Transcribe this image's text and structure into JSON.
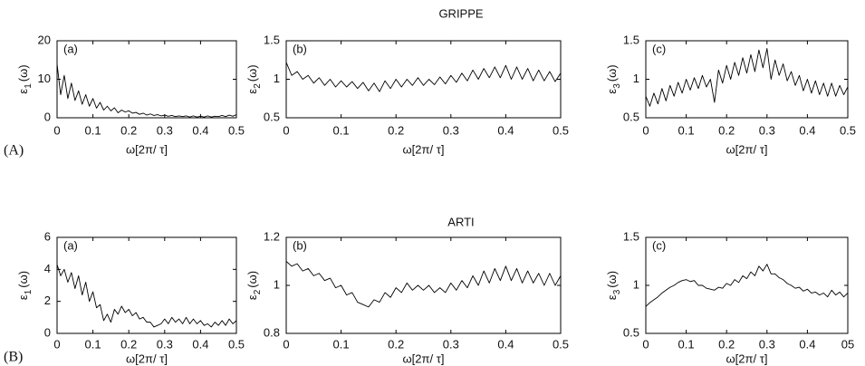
{
  "rows": [
    {
      "title": "GRIPPE",
      "label": "(A)"
    },
    {
      "title": "ARTI",
      "label": "(B)"
    }
  ],
  "chart_data": [
    {
      "type": "line",
      "panel": "(a)",
      "ylabel": [
        "ε",
        "1",
        "(ω)"
      ],
      "xlabel": "ω[2π/ τ]",
      "color": "#000000",
      "x": [
        0,
        0.01,
        0.02,
        0.03,
        0.04,
        0.05,
        0.06,
        0.07,
        0.08,
        0.09,
        0.1,
        0.11,
        0.12,
        0.13,
        0.14,
        0.15,
        0.16,
        0.17,
        0.18,
        0.19,
        0.2,
        0.21,
        0.22,
        0.23,
        0.24,
        0.25,
        0.26,
        0.27,
        0.28,
        0.29,
        0.3,
        0.31,
        0.32,
        0.33,
        0.34,
        0.35,
        0.36,
        0.37,
        0.38,
        0.39,
        0.4,
        0.41,
        0.42,
        0.43,
        0.44,
        0.45,
        0.46,
        0.47,
        0.48,
        0.49,
        0.5
      ],
      "values": [
        14,
        6,
        11,
        5,
        9,
        4.5,
        7,
        3.5,
        6,
        3,
        5,
        2.5,
        4,
        2,
        3,
        1.8,
        2.6,
        1.3,
        2,
        1.5,
        1.8,
        1.2,
        1.4,
        0.9,
        1.2,
        0.7,
        1,
        0.6,
        0.8,
        0.5,
        0.7,
        0.4,
        0.6,
        0.3,
        0.5,
        0.3,
        0.5,
        0.2,
        0.5,
        0.2,
        0.4,
        0.2,
        0.5,
        0.2,
        0.4,
        0.3,
        0.6,
        0.3,
        0.7,
        0.4,
        0.8
      ],
      "xlim": [
        0,
        0.5
      ],
      "xticks": [
        0,
        0.1,
        0.2,
        0.3,
        0.4,
        0.5
      ],
      "ylim": [
        0,
        20
      ],
      "yticks": [
        0,
        10,
        20
      ]
    },
    {
      "type": "line",
      "panel": "(b)",
      "ylabel": [
        "ε",
        "2",
        "(ω)"
      ],
      "xlabel": "ω[2π/ τ]",
      "color": "#000000",
      "x": [
        0,
        0.01,
        0.02,
        0.03,
        0.04,
        0.05,
        0.06,
        0.07,
        0.08,
        0.09,
        0.1,
        0.11,
        0.12,
        0.13,
        0.14,
        0.15,
        0.16,
        0.17,
        0.18,
        0.19,
        0.2,
        0.21,
        0.22,
        0.23,
        0.24,
        0.25,
        0.26,
        0.27,
        0.28,
        0.29,
        0.3,
        0.31,
        0.32,
        0.33,
        0.34,
        0.35,
        0.36,
        0.37,
        0.38,
        0.39,
        0.4,
        0.41,
        0.42,
        0.43,
        0.44,
        0.45,
        0.46,
        0.47,
        0.48,
        0.49,
        0.5
      ],
      "values": [
        1.22,
        1.05,
        1.1,
        1.0,
        1.05,
        0.95,
        1.02,
        0.92,
        1.0,
        0.9,
        0.98,
        0.9,
        0.97,
        0.88,
        0.96,
        0.85,
        0.95,
        0.84,
        0.98,
        0.88,
        1.0,
        0.9,
        1.0,
        0.92,
        1.02,
        0.92,
        1.0,
        0.93,
        1.03,
        0.94,
        1.05,
        0.96,
        1.08,
        0.98,
        1.12,
        1.0,
        1.14,
        1.02,
        1.16,
        1.02,
        1.18,
        1.0,
        1.16,
        1.0,
        1.14,
        0.98,
        1.12,
        0.98,
        1.1,
        0.97,
        1.08
      ],
      "xlim": [
        0,
        0.5
      ],
      "xticks": [
        0,
        0.1,
        0.2,
        0.3,
        0.4,
        0.5
      ],
      "ylim": [
        0.5,
        1.5
      ],
      "yticks": [
        0.5,
        1,
        1.5
      ]
    },
    {
      "type": "line",
      "panel": "(c)",
      "ylabel": [
        "ε",
        "3",
        "(ω)"
      ],
      "xlabel": "ω[2π/ τ]",
      "color": "#000000",
      "x": [
        0,
        0.01,
        0.02,
        0.03,
        0.04,
        0.05,
        0.06,
        0.07,
        0.08,
        0.09,
        0.1,
        0.11,
        0.12,
        0.13,
        0.14,
        0.15,
        0.16,
        0.17,
        0.18,
        0.19,
        0.2,
        0.21,
        0.22,
        0.23,
        0.24,
        0.25,
        0.26,
        0.27,
        0.28,
        0.29,
        0.3,
        0.31,
        0.32,
        0.33,
        0.34,
        0.35,
        0.36,
        0.37,
        0.38,
        0.39,
        0.4,
        0.41,
        0.42,
        0.43,
        0.44,
        0.45,
        0.46,
        0.47,
        0.48,
        0.49,
        0.5
      ],
      "values": [
        0.78,
        0.65,
        0.82,
        0.68,
        0.88,
        0.72,
        0.92,
        0.78,
        0.96,
        0.82,
        1.0,
        0.86,
        1.02,
        0.88,
        1.05,
        0.9,
        1.0,
        0.7,
        1.12,
        0.95,
        1.18,
        1.0,
        1.22,
        1.05,
        1.28,
        1.08,
        1.32,
        1.1,
        1.38,
        1.15,
        1.4,
        1.0,
        1.25,
        1.05,
        1.2,
        0.98,
        1.1,
        0.92,
        1.05,
        0.85,
        1.0,
        0.82,
        0.98,
        0.8,
        0.95,
        0.78,
        0.95,
        0.78,
        0.92,
        0.8,
        0.9
      ],
      "xlim": [
        0,
        0.5
      ],
      "xticks": [
        0,
        0.1,
        0.2,
        0.3,
        0.4,
        0.5
      ],
      "ylim": [
        0.5,
        1.5
      ],
      "yticks": [
        0.5,
        1,
        1.5
      ]
    },
    {
      "type": "line",
      "panel": "(a)",
      "ylabel": [
        "ε",
        "1",
        "(ω)"
      ],
      "xlabel": "ω[2π/ τ]",
      "color": "#000000",
      "x": [
        0,
        0.01,
        0.02,
        0.03,
        0.04,
        0.05,
        0.06,
        0.07,
        0.08,
        0.09,
        0.1,
        0.11,
        0.12,
        0.13,
        0.14,
        0.15,
        0.16,
        0.17,
        0.18,
        0.19,
        0.2,
        0.21,
        0.22,
        0.23,
        0.24,
        0.25,
        0.26,
        0.27,
        0.28,
        0.29,
        0.3,
        0.31,
        0.32,
        0.33,
        0.34,
        0.35,
        0.36,
        0.37,
        0.38,
        0.39,
        0.4,
        0.41,
        0.42,
        0.43,
        0.44,
        0.45,
        0.46,
        0.47,
        0.48,
        0.49,
        0.5
      ],
      "values": [
        4.3,
        3.6,
        4.0,
        3.2,
        3.8,
        2.8,
        3.6,
        2.4,
        3.2,
        2.0,
        2.6,
        1.6,
        1.8,
        0.8,
        1.2,
        0.7,
        1.5,
        1.2,
        1.7,
        1.3,
        1.5,
        1.1,
        1.3,
        0.9,
        1.0,
        0.7,
        0.7,
        0.4,
        0.5,
        0.6,
        0.9,
        0.6,
        1.0,
        0.7,
        0.9,
        0.6,
        1.0,
        0.6,
        0.9,
        0.6,
        0.8,
        0.5,
        0.6,
        0.4,
        0.7,
        0.5,
        0.8,
        0.5,
        0.9,
        0.6,
        0.8
      ],
      "xlim": [
        0,
        0.5
      ],
      "xticks": [
        0,
        0.1,
        0.2,
        0.3,
        0.4,
        0.5
      ],
      "ylim": [
        0,
        6
      ],
      "yticks": [
        0,
        2,
        4,
        6
      ]
    },
    {
      "type": "line",
      "panel": "(b)",
      "ylabel": [
        "ε",
        "2",
        "(ω)"
      ],
      "xlabel": "ω[2π/ τ]",
      "color": "#000000",
      "x": [
        0,
        0.01,
        0.02,
        0.03,
        0.04,
        0.05,
        0.06,
        0.07,
        0.08,
        0.09,
        0.1,
        0.11,
        0.12,
        0.13,
        0.14,
        0.15,
        0.16,
        0.17,
        0.18,
        0.19,
        0.2,
        0.21,
        0.22,
        0.23,
        0.24,
        0.25,
        0.26,
        0.27,
        0.28,
        0.29,
        0.3,
        0.31,
        0.32,
        0.33,
        0.34,
        0.35,
        0.36,
        0.37,
        0.38,
        0.39,
        0.4,
        0.41,
        0.42,
        0.43,
        0.44,
        0.45,
        0.46,
        0.47,
        0.48,
        0.49,
        0.5
      ],
      "values": [
        1.1,
        1.08,
        1.09,
        1.06,
        1.07,
        1.04,
        1.05,
        1.02,
        1.03,
        0.99,
        1.0,
        0.96,
        0.97,
        0.93,
        0.92,
        0.91,
        0.94,
        0.93,
        0.97,
        0.95,
        0.99,
        0.97,
        1.01,
        0.98,
        1.0,
        0.98,
        1.0,
        0.97,
        0.99,
        0.97,
        1.01,
        0.98,
        1.02,
        0.99,
        1.04,
        1.0,
        1.06,
        1.01,
        1.07,
        1.02,
        1.08,
        1.02,
        1.07,
        1.01,
        1.06,
        1.01,
        1.05,
        1.0,
        1.05,
        1.0,
        1.04
      ],
      "xlim": [
        0,
        0.5
      ],
      "xticks": [
        0,
        0.1,
        0.2,
        0.3,
        0.4,
        0.5
      ],
      "ylim": [
        0.8,
        1.2
      ],
      "yticks": [
        0.8,
        1,
        1.2
      ]
    },
    {
      "type": "line",
      "panel": "(c)",
      "ylabel": [
        "ε",
        "3",
        "(ω)"
      ],
      "xlabel": "ω[2π/ τ]",
      "color": "#000000",
      "x": [
        0,
        0.01,
        0.02,
        0.03,
        0.04,
        0.05,
        0.06,
        0.07,
        0.08,
        0.09,
        0.1,
        0.11,
        0.12,
        0.13,
        0.14,
        0.15,
        0.16,
        0.17,
        0.18,
        0.19,
        0.2,
        0.21,
        0.22,
        0.23,
        0.24,
        0.25,
        0.26,
        0.27,
        0.28,
        0.29,
        0.3,
        0.31,
        0.32,
        0.33,
        0.34,
        0.35,
        0.36,
        0.37,
        0.38,
        0.39,
        0.4,
        0.41,
        0.42,
        0.43,
        0.44,
        0.45,
        0.46,
        0.47,
        0.48,
        0.49,
        0.5
      ],
      "values": [
        0.78,
        0.82,
        0.85,
        0.88,
        0.92,
        0.95,
        0.98,
        1.0,
        1.03,
        1.05,
        1.06,
        1.04,
        1.05,
        1.0,
        1.0,
        0.97,
        0.96,
        0.95,
        0.98,
        0.97,
        1.02,
        1.0,
        1.06,
        1.03,
        1.1,
        1.07,
        1.14,
        1.1,
        1.2,
        1.15,
        1.22,
        1.12,
        1.12,
        1.08,
        1.06,
        1.02,
        1.0,
        0.97,
        0.98,
        0.94,
        0.96,
        0.92,
        0.93,
        0.9,
        0.92,
        0.88,
        0.95,
        0.9,
        0.93,
        0.88,
        0.92
      ],
      "xlim": [
        0,
        0.5
      ],
      "xticks": [
        0,
        0.1,
        0.2,
        0.3,
        0.4,
        {
          "value": 0.5,
          "label": "05"
        }
      ],
      "ylim": [
        0.5,
        1.5
      ],
      "yticks": [
        0.5,
        1,
        1.5
      ]
    }
  ]
}
